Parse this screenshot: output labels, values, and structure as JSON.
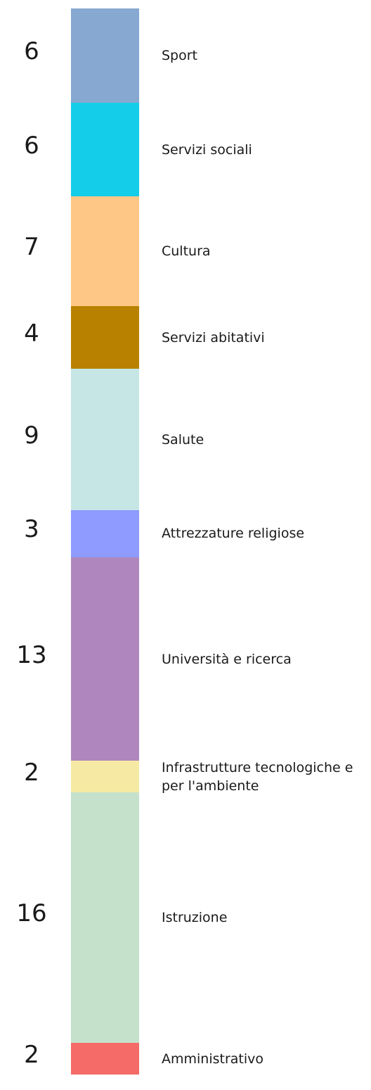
{
  "chart_data": {
    "type": "stacked-bar",
    "categories": [
      "Sport",
      "Servizi sociali",
      "Cultura",
      "Servizi abitativi",
      "Salute",
      "Attrezzature religiose",
      "Università e ricerca",
      "Infrastrutture tecnologiche e per l'ambiente",
      "Istruzione",
      "Amministrativo"
    ],
    "values": [
      6,
      6,
      7,
      4,
      9,
      3,
      13,
      2,
      16,
      2
    ],
    "colors": [
      "#87a8d0",
      "#14cde8",
      "#ffc785",
      "#b88200",
      "#c5e6e5",
      "#8f9bff",
      "#af87be",
      "#f6e9a3",
      "#c5e1cb",
      "#f56b67"
    ]
  }
}
